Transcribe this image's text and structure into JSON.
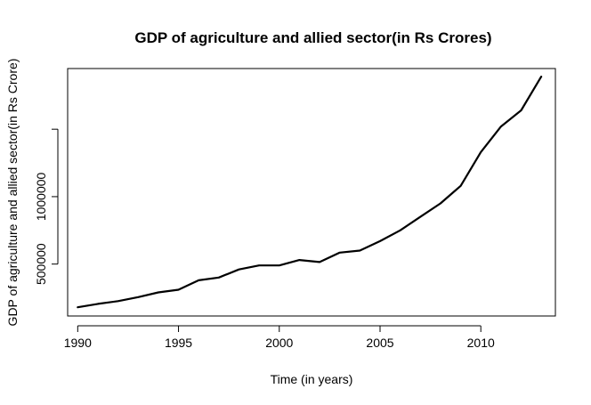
{
  "chart_data": {
    "type": "line",
    "title": "GDP of agriculture and allied sector(in Rs Crores)",
    "xlabel": "Time (in years)",
    "ylabel": "GDP of agriculture and allied sector(in Rs Crore)",
    "xlim": [
      1989.5,
      2013.7
    ],
    "ylim": [
      115000,
      1950000
    ],
    "x_ticks": [
      1990,
      1995,
      2000,
      2005,
      2010
    ],
    "y_ticks": [
      500000,
      1000000,
      1500000
    ],
    "y_tick_labels": [
      "500000",
      "1000000",
      ""
    ],
    "grid": false,
    "series": [
      {
        "x": [
          1990,
          1991,
          1992,
          1993,
          1994,
          1995,
          1996,
          1997,
          1998,
          1999,
          2000,
          2001,
          2002,
          2003,
          2004,
          2005,
          2006,
          2007,
          2008,
          2009,
          2010,
          2011,
          2012,
          2013
        ],
        "values": [
          180000,
          205000,
          225000,
          255000,
          290000,
          310000,
          380000,
          400000,
          460000,
          490000,
          490000,
          530000,
          515000,
          585000,
          600000,
          670000,
          750000,
          850000,
          950000,
          1080000,
          1330000,
          1520000,
          1640000,
          1890000
        ]
      }
    ]
  }
}
